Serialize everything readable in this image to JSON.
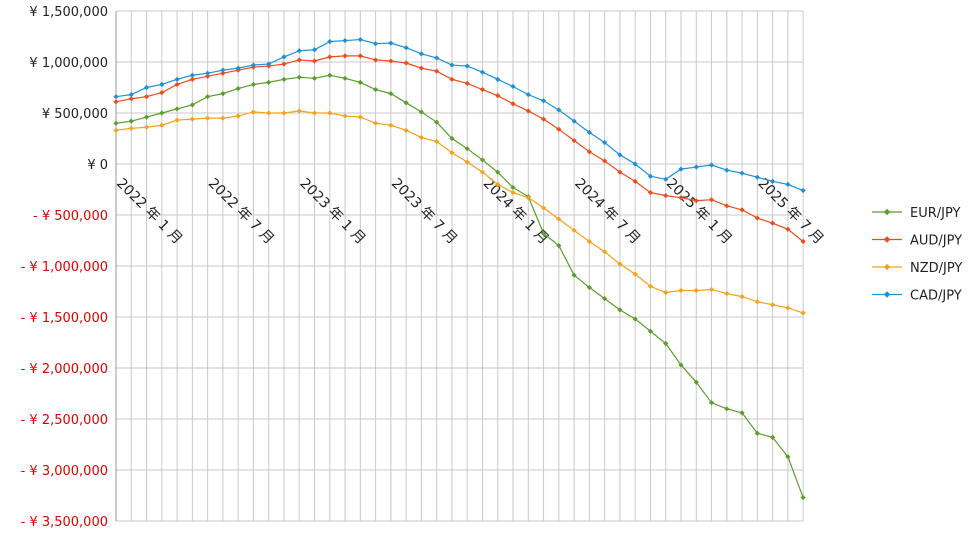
{
  "chart_data": {
    "type": "line",
    "categories": [
      "2022 年 1 月",
      null,
      null,
      null,
      null,
      null,
      "2022 年 7 月",
      null,
      null,
      null,
      null,
      null,
      "2023 年 1 月",
      null,
      null,
      null,
      null,
      null,
      "2023 年 7 月",
      null,
      null,
      null,
      null,
      null,
      "2024 年 1 月",
      null,
      null,
      null,
      null,
      null,
      "2024 年 7 月",
      null,
      null,
      null,
      null,
      null,
      "2025 年 1 月",
      null,
      null,
      null,
      null,
      null,
      "2025 年 7 月",
      null,
      null,
      null
    ],
    "series": [
      {
        "name": "EUR/JPY",
        "color": "#5a9e2c",
        "values": [
          400000,
          420000,
          460000,
          500000,
          540000,
          580000,
          660000,
          690000,
          740000,
          780000,
          800000,
          830000,
          850000,
          840000,
          870000,
          840000,
          800000,
          730000,
          690000,
          600000,
          510000,
          410000,
          250000,
          150000,
          40000,
          -80000,
          -230000,
          -320000,
          -680000,
          -800000,
          -1090000,
          -1210000,
          -1320000,
          -1430000,
          -1520000,
          -1640000,
          -1760000,
          -1970000,
          -2140000,
          -2340000,
          -2400000,
          -2440000,
          -2640000,
          -2680000,
          -2870000,
          -3270000
        ]
      },
      {
        "name": "AUD/JPY",
        "color": "#f04b1c",
        "values": [
          610000,
          640000,
          660000,
          700000,
          780000,
          830000,
          860000,
          890000,
          920000,
          950000,
          960000,
          980000,
          1020000,
          1010000,
          1050000,
          1060000,
          1060000,
          1020000,
          1010000,
          990000,
          940000,
          910000,
          830000,
          790000,
          730000,
          670000,
          590000,
          520000,
          440000,
          340000,
          230000,
          120000,
          30000,
          -80000,
          -170000,
          -280000,
          -310000,
          -330000,
          -360000,
          -350000,
          -410000,
          -450000,
          -530000,
          -580000,
          -640000,
          -760000
        ]
      },
      {
        "name": "NZD/JPY",
        "color": "#f7a11c",
        "values": [
          330000,
          350000,
          360000,
          380000,
          430000,
          440000,
          450000,
          450000,
          470000,
          510000,
          500000,
          500000,
          520000,
          500000,
          500000,
          470000,
          460000,
          400000,
          380000,
          330000,
          260000,
          220000,
          110000,
          20000,
          -80000,
          -200000,
          -280000,
          -330000,
          -430000,
          -540000,
          -650000,
          -760000,
          -860000,
          -980000,
          -1080000,
          -1200000,
          -1260000,
          -1240000,
          -1240000,
          -1230000,
          -1270000,
          -1300000,
          -1350000,
          -1380000,
          -1410000,
          -1460000
        ]
      },
      {
        "name": "CAD/JPY",
        "color": "#1f8fd8",
        "values": [
          660000,
          680000,
          750000,
          780000,
          830000,
          870000,
          890000,
          920000,
          940000,
          970000,
          980000,
          1050000,
          1110000,
          1120000,
          1200000,
          1210000,
          1220000,
          1180000,
          1185000,
          1140000,
          1080000,
          1040000,
          970000,
          960000,
          900000,
          830000,
          760000,
          680000,
          620000,
          530000,
          420000,
          310000,
          210000,
          90000,
          0,
          -120000,
          -150000,
          -50000,
          -30000,
          -10000,
          -60000,
          -90000,
          -130000,
          -170000,
          -200000,
          -260000
        ]
      }
    ],
    "ylim": [
      -3500000,
      1500000
    ],
    "yticks": [
      {
        "value": -3500000,
        "label": "- ¥ 3,500,000"
      },
      {
        "value": -3000000,
        "label": "- ¥ 3,000,000"
      },
      {
        "value": -2500000,
        "label": "- ¥ 2,500,000"
      },
      {
        "value": -2000000,
        "label": "- ¥ 2,000,000"
      },
      {
        "value": -1500000,
        "label": "- ¥ 1,500,000"
      },
      {
        "value": -1000000,
        "label": "- ¥ 1,000,000"
      },
      {
        "value": -500000,
        "label": "- ¥ 500,000"
      },
      {
        "value": 0,
        "label": "¥ 0"
      },
      {
        "value": 500000,
        "label": "¥ 500,000"
      },
      {
        "value": 1000000,
        "label": "¥ 1,000,000"
      },
      {
        "value": 1500000,
        "label": "¥ 1,500,000"
      }
    ],
    "grid": true,
    "legend": "right"
  }
}
